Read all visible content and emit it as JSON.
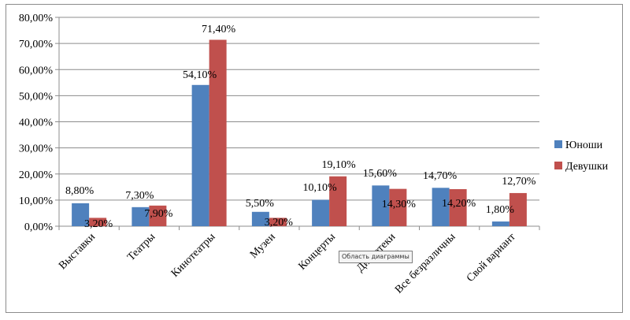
{
  "chart_data": {
    "type": "bar",
    "categories": [
      "Выставки",
      "Театры",
      "Кинотеатры",
      "Музеи",
      "Концерты",
      "Дискотеки",
      "Все безразличны",
      "Свой вариант"
    ],
    "series": [
      {
        "name": "Юноши",
        "values": [
          8.8,
          7.3,
          54.1,
          5.5,
          10.1,
          15.6,
          14.7,
          1.8
        ],
        "labels": [
          "8,80%",
          "7,30%",
          "54,10%",
          "5,50%",
          "10,10%",
          "15,60%",
          "14,70%",
          "1,80%"
        ]
      },
      {
        "name": "Девушки",
        "values": [
          3.2,
          7.9,
          71.4,
          3.2,
          19.1,
          14.3,
          14.2,
          12.7
        ],
        "labels": [
          "3,20%",
          "7,90%",
          "71,40%",
          "3,20%",
          "19,10%",
          "14,30%",
          "14,20%",
          "12,70%"
        ]
      }
    ],
    "ylim": [
      0,
      80
    ],
    "yticks": [
      "0,00%",
      "10,00%",
      "20,00%",
      "30,00%",
      "40,00%",
      "50,00%",
      "60,00%",
      "70,00%",
      "80,00%"
    ],
    "grid": true,
    "legend_position": "right",
    "colors": [
      "#4f81bd",
      "#c0504d"
    ]
  },
  "tooltip_text": "Область диаграммы"
}
